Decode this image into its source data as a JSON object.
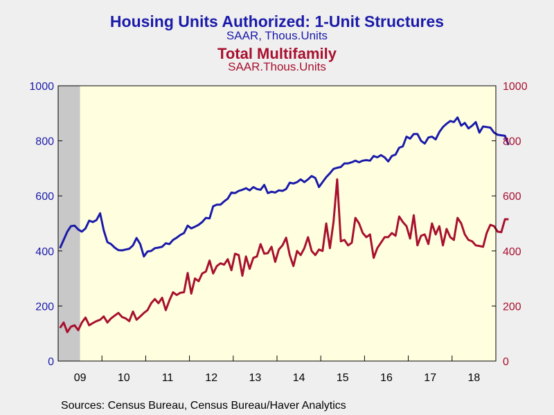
{
  "colors": {
    "left": "#1a1aaa",
    "right": "#a8102e",
    "plot_bg": "#ffffe0",
    "recession": "#c8c8c8"
  },
  "source": "Sources:  Census Bureau, Census Bureau/Haver Analytics",
  "chart_data": {
    "type": "line",
    "title": "Housing Units Authorized: 1-Unit Structures",
    "subtitle": "SAAR, Thous.Units",
    "title2": "Total Multifamily",
    "subtitle2": "SAAR.Thous.Units",
    "x_start": "2009-01",
    "x_end": "2018-12",
    "x_tick_labels": [
      "09",
      "10",
      "11",
      "12",
      "13",
      "14",
      "15",
      "16",
      "17",
      "18"
    ],
    "ylim_left": [
      0,
      1000
    ],
    "ylim_right": [
      0,
      1000
    ],
    "y_ticks_left": [
      "0",
      "200",
      "400",
      "600",
      "800",
      "1000"
    ],
    "y_ticks_right": [
      "0",
      "200",
      "400",
      "600",
      "800",
      "1000"
    ],
    "grid": false,
    "recession_shading": [
      "2009-01",
      "2009-06"
    ],
    "series": [
      {
        "axis": "left",
        "color": "#1a1aaa",
        "values": [
          410,
          440,
          470,
          490,
          492,
          478,
          470,
          482,
          510,
          505,
          512,
          537,
          475,
          432,
          425,
          412,
          403,
          402,
          405,
          408,
          420,
          447,
          425,
          380,
          398,
          400,
          410,
          412,
          415,
          428,
          425,
          440,
          448,
          458,
          465,
          492,
          482,
          488,
          495,
          505,
          520,
          518,
          562,
          568,
          568,
          580,
          590,
          612,
          610,
          618,
          622,
          628,
          620,
          632,
          625,
          622,
          640,
          610,
          615,
          612,
          620,
          618,
          625,
          648,
          645,
          650,
          660,
          650,
          660,
          672,
          665,
          632,
          650,
          668,
          682,
          698,
          702,
          705,
          718,
          718,
          722,
          728,
          722,
          728,
          730,
          728,
          745,
          740,
          748,
          740,
          725,
          745,
          750,
          775,
          780,
          815,
          808,
          825,
          825,
          800,
          790,
          812,
          815,
          805,
          832,
          850,
          862,
          872,
          868,
          885,
          855,
          865,
          845,
          855,
          868,
          830,
          852,
          850,
          848,
          830,
          822,
          820,
          818,
          785
        ]
      },
      {
        "axis": "right",
        "color": "#a8102e",
        "values": [
          120,
          140,
          105,
          125,
          130,
          112,
          140,
          158,
          130,
          138,
          145,
          150,
          162,
          140,
          155,
          165,
          175,
          160,
          155,
          145,
          180,
          150,
          162,
          175,
          185,
          210,
          225,
          210,
          230,
          185,
          220,
          250,
          240,
          248,
          250,
          320,
          245,
          300,
          290,
          318,
          325,
          365,
          318,
          345,
          355,
          350,
          370,
          330,
          390,
          385,
          310,
          380,
          335,
          375,
          380,
          425,
          390,
          392,
          415,
          360,
          405,
          420,
          448,
          385,
          345,
          400,
          385,
          410,
          450,
          400,
          385,
          405,
          400,
          500,
          410,
          505,
          660,
          435,
          440,
          420,
          430,
          520,
          500,
          465,
          450,
          460,
          375,
          410,
          430,
          450,
          450,
          465,
          455,
          525,
          505,
          490,
          445,
          530,
          420,
          455,
          460,
          425,
          500,
          460,
          490,
          420,
          480,
          450,
          440,
          520,
          500,
          460,
          440,
          435,
          420,
          418,
          415,
          465,
          495,
          490,
          470,
          468,
          515,
          515
        ]
      }
    ]
  }
}
